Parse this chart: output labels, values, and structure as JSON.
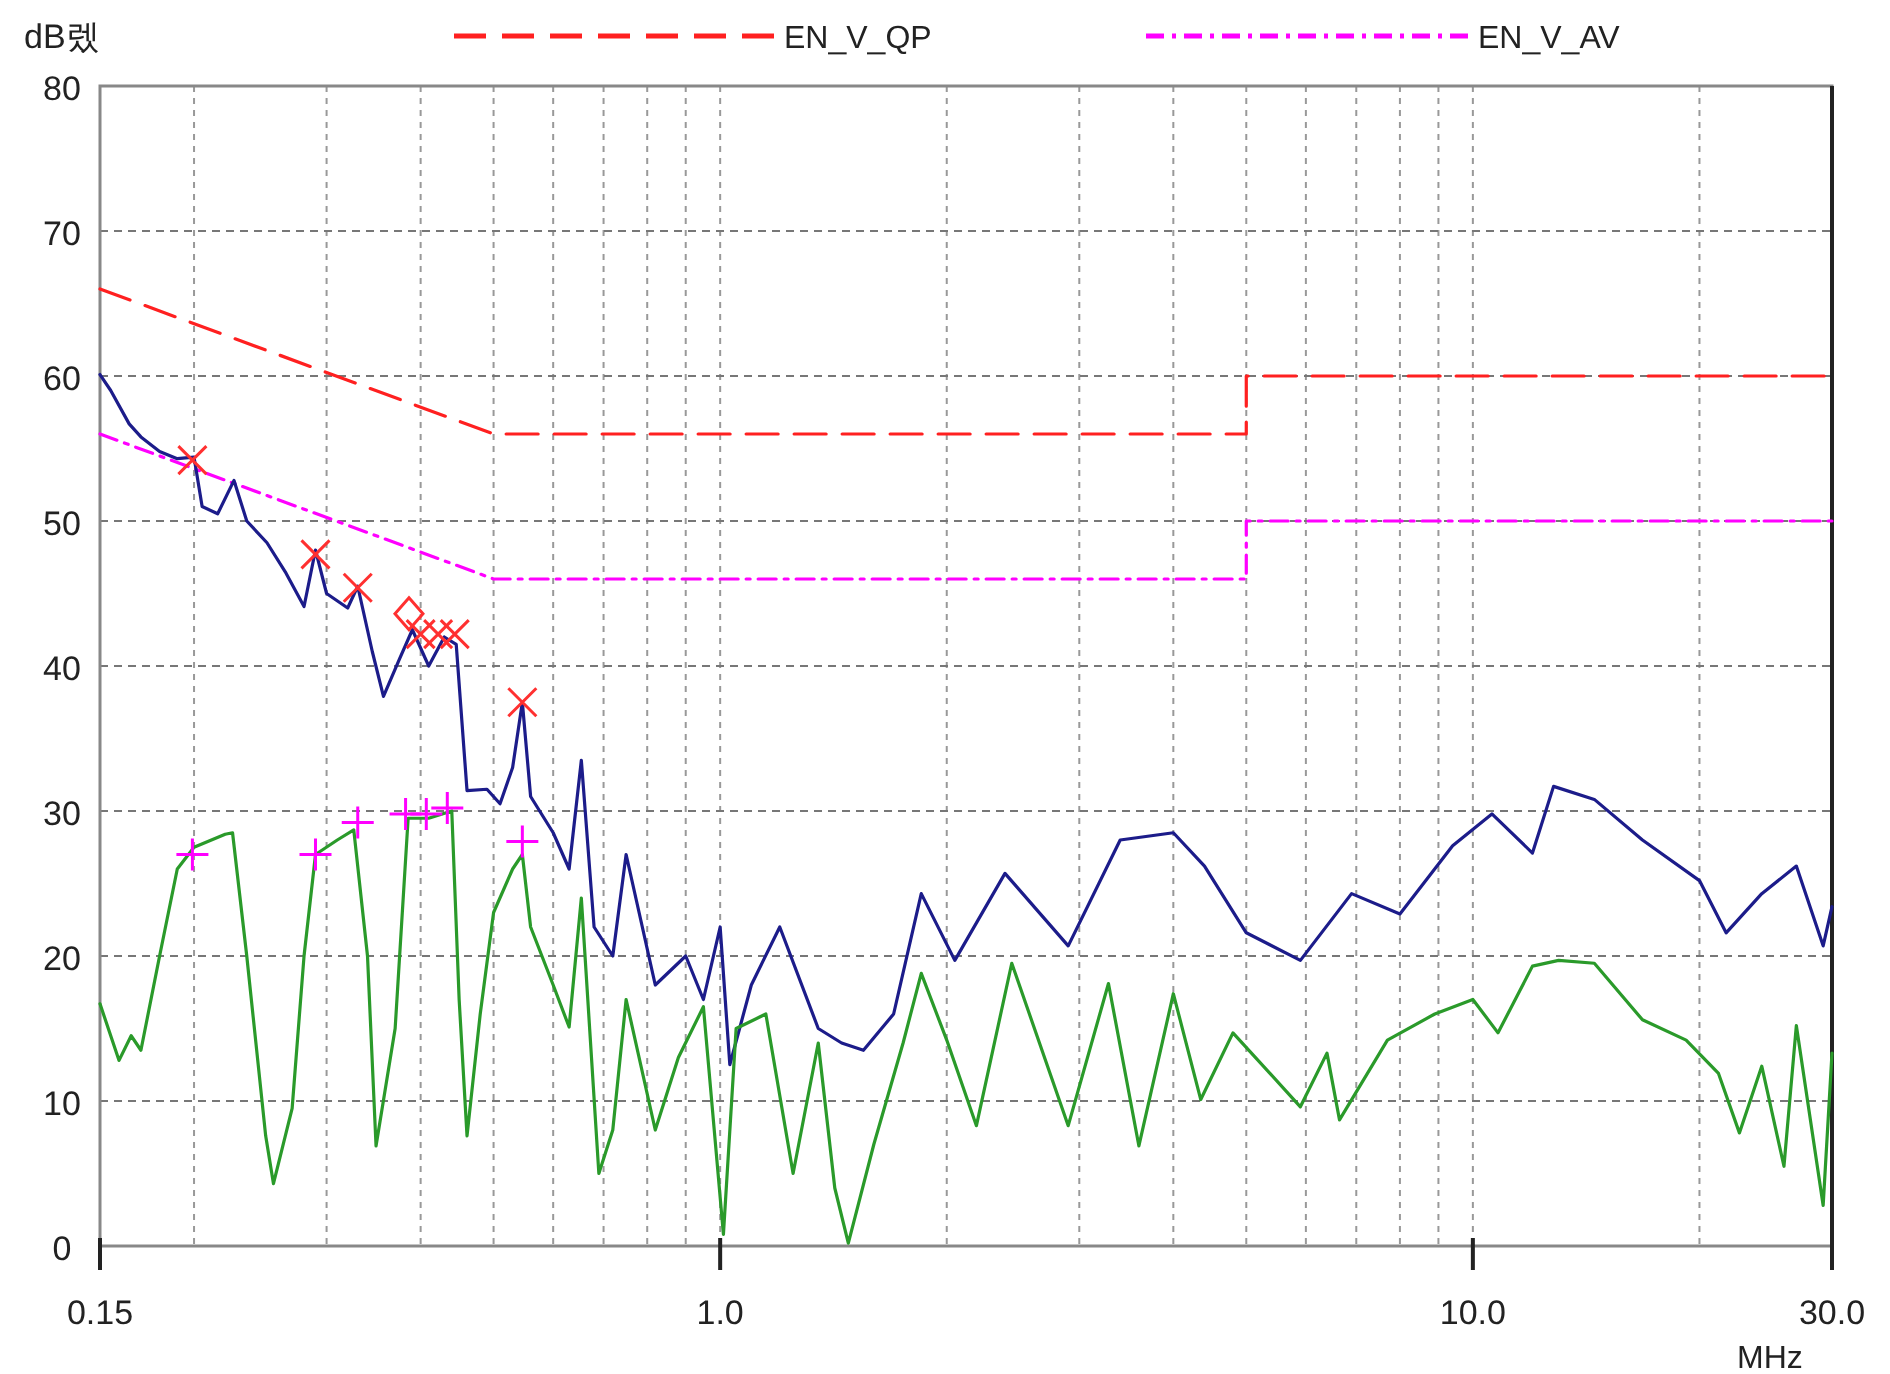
{
  "chart_data": {
    "type": "line",
    "ylabel": "dB렜",
    "xlabel": "MHz",
    "log": "x",
    "grid": true,
    "legend": "top",
    "xlim": [
      0.15,
      30
    ],
    "ylim": [
      0,
      80
    ],
    "xticks": [
      0.15,
      {
        "value": 0.2,
        "label": null
      },
      {
        "value": 0.3,
        "label": null
      },
      {
        "value": 0.4,
        "label": null
      },
      {
        "value": 0.5,
        "label": null
      },
      {
        "value": 0.6,
        "label": null
      },
      {
        "value": 0.7,
        "label": null
      },
      {
        "value": 0.8,
        "label": null
      },
      {
        "value": 0.9,
        "label": null
      },
      {
        "value": 1,
        "label": "1.0"
      },
      {
        "value": 2,
        "label": null
      },
      {
        "value": 3,
        "label": null
      },
      {
        "value": 4,
        "label": null
      },
      {
        "value": 5,
        "label": null
      },
      {
        "value": 6,
        "label": null
      },
      {
        "value": 7,
        "label": null
      },
      {
        "value": 8,
        "label": null
      },
      {
        "value": 9,
        "label": null
      },
      {
        "value": 10,
        "label": "10.0"
      },
      {
        "value": 20,
        "label": null
      },
      {
        "value": 30,
        "label": "30.0"
      }
    ],
    "yticks": [
      0,
      10,
      20,
      30,
      40,
      50,
      60,
      70,
      80
    ],
    "series": [
      {
        "name": "EN_V_QP",
        "line_style": "dashed",
        "color": "#ff2020",
        "x": [
          0.15,
          0.5,
          5,
          5,
          30
        ],
        "values": [
          66,
          56,
          56,
          60,
          60
        ]
      },
      {
        "name": "EN_V_AV",
        "line_style": "dotted",
        "color": "#ff00ff",
        "x": [
          0.15,
          0.5,
          5,
          5,
          30
        ],
        "values": [
          56,
          46,
          46,
          50,
          50
        ]
      },
      {
        "line_style": "solid",
        "color": "#1c1c8a",
        "x": [
          0.15,
          0.155,
          0.164,
          0.17,
          0.18,
          0.19,
          0.2,
          0.205,
          0.215,
          0.226,
          0.235,
          0.25,
          0.265,
          0.28,
          0.29,
          0.3,
          0.32,
          0.33,
          0.345,
          0.357,
          0.375,
          0.39,
          0.41,
          0.43,
          0.446,
          0.461,
          0.49,
          0.51,
          0.53,
          0.546,
          0.56,
          0.6,
          0.63,
          0.654,
          0.68,
          0.72,
          0.75,
          0.82,
          0.9,
          0.95,
          1.0,
          1.03,
          1.1,
          1.2,
          1.35,
          1.45,
          1.55,
          1.7,
          1.85,
          2.05,
          2.39,
          2.9,
          3.4,
          4.0,
          4.4,
          5.0,
          5.9,
          6.9,
          8.0,
          9.4,
          10.6,
          12.0,
          12.8,
          14.5,
          16.8,
          20,
          21.7,
          24.2,
          26.9,
          29.2,
          30
        ],
        "values": [
          60.1,
          59,
          56.7,
          55.8,
          54.8,
          54.3,
          54.4,
          51,
          50.5,
          52.8,
          50,
          48.5,
          46.4,
          44.1,
          48,
          45,
          44,
          45.5,
          41,
          37.9,
          40.5,
          42.5,
          40,
          42,
          41.5,
          31.4,
          31.5,
          30.5,
          33,
          37.5,
          31,
          28.5,
          26,
          33.5,
          22,
          20,
          27,
          18,
          20,
          17,
          22,
          12.5,
          18,
          22,
          15,
          14,
          13.5,
          16,
          24.3,
          19.7,
          25.7,
          20.7,
          28,
          28.5,
          26.2,
          21.6,
          19.7,
          24.3,
          22.9,
          27.6,
          29.8,
          27.1,
          31.7,
          30.8,
          28,
          25.2,
          21.6,
          24.3,
          26.2,
          20.7,
          23.4
        ]
      },
      {
        "line_style": "solid",
        "color": "#2a9a2a",
        "x": [
          0.15,
          0.159,
          0.165,
          0.17,
          0.18,
          0.19,
          0.2,
          0.22,
          0.225,
          0.235,
          0.249,
          0.255,
          0.27,
          0.28,
          0.29,
          0.31,
          0.326,
          0.34,
          0.349,
          0.37,
          0.385,
          0.41,
          0.44,
          0.45,
          0.461,
          0.48,
          0.5,
          0.53,
          0.546,
          0.56,
          0.6,
          0.63,
          0.654,
          0.69,
          0.72,
          0.75,
          0.82,
          0.88,
          0.95,
          1.01,
          1.05,
          1.15,
          1.25,
          1.35,
          1.42,
          1.48,
          1.6,
          1.75,
          1.85,
          2.0,
          2.19,
          2.44,
          2.9,
          3.28,
          3.6,
          4.0,
          4.35,
          4.8,
          5.9,
          6.4,
          6.65,
          7.7,
          8.9,
          10,
          10.8,
          12,
          13,
          14.5,
          16.8,
          19.2,
          21.2,
          22.6,
          24.2,
          25.9,
          26.9,
          29.2,
          30
        ],
        "values": [
          16.7,
          12.8,
          14.5,
          13.5,
          20,
          26,
          27.5,
          28.4,
          28.5,
          20,
          7.6,
          4.3,
          9.5,
          20,
          27,
          28,
          28.7,
          20,
          6.9,
          15,
          29.5,
          29.5,
          30,
          17,
          7.6,
          16,
          23,
          26,
          27,
          22,
          18,
          15.1,
          24,
          5,
          8,
          17,
          8,
          13,
          16.5,
          0.8,
          15,
          16,
          5,
          14,
          4,
          0.2,
          7,
          14,
          18.8,
          14.2,
          8.3,
          19.5,
          8.3,
          18.1,
          6.9,
          17.4,
          10.1,
          14.7,
          9.6,
          13.3,
          8.7,
          14.2,
          16,
          17,
          14.7,
          19.3,
          19.7,
          19.5,
          15.6,
          14.2,
          11.9,
          7.8,
          12.4,
          5.5,
          15.2,
          2.8,
          13.3
        ]
      },
      {
        "type": "scatter",
        "marker": "cross",
        "color": "#ff3030",
        "x": [
          0.199,
          0.29,
          0.33,
          0.4,
          0.422,
          0.444,
          0.546
        ],
        "values": [
          54.2,
          47.7,
          45.4,
          42.2,
          42.2,
          42.2,
          37.5
        ]
      },
      {
        "type": "scatter",
        "marker": "diamond",
        "color": "#ff3030",
        "x": [
          0.386
        ],
        "values": [
          43.6
        ]
      },
      {
        "type": "scatter",
        "marker": "plus",
        "color": "#ff00ff",
        "x": [
          0.199,
          0.29,
          0.33,
          0.382,
          0.407,
          0.434,
          0.546
        ],
        "values": [
          27,
          27,
          29.2,
          29.8,
          29.8,
          30.2,
          27.9
        ]
      }
    ]
  }
}
